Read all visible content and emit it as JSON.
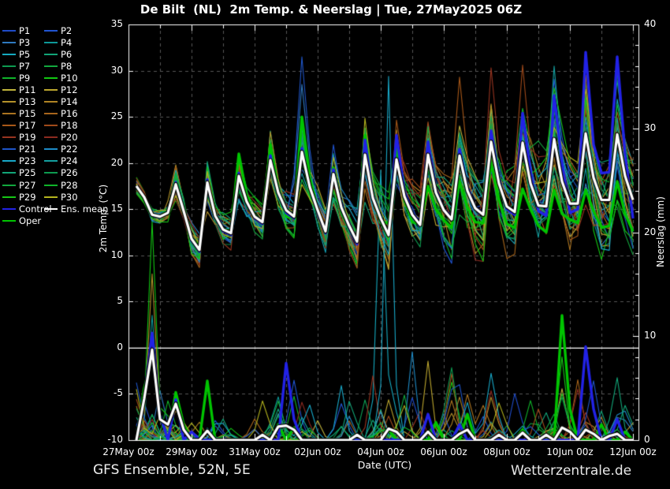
{
  "header": {
    "title": "De Bilt  (NL)  2m Temp. & Neerslag | Tue, 27May2025 06Z"
  },
  "footer": {
    "model_label": "GFS Ensemble, 52N, 5E",
    "site_label": "Wetterzentrale.de"
  },
  "legend": {
    "entries": [
      {
        "label": "P1",
        "color": "#1f4bc8"
      },
      {
        "label": "P2",
        "color": "#2155d2"
      },
      {
        "label": "P3",
        "color": "#2f7ac0"
      },
      {
        "label": "P4",
        "color": "#0e9898"
      },
      {
        "label": "P5",
        "color": "#15aac0"
      },
      {
        "label": "P6",
        "color": "#12a578"
      },
      {
        "label": "P7",
        "color": "#0d9a50"
      },
      {
        "label": "P8",
        "color": "#12a83e"
      },
      {
        "label": "P9",
        "color": "#0fb42a"
      },
      {
        "label": "P10",
        "color": "#12c812"
      },
      {
        "label": "P11",
        "color": "#c0b43c"
      },
      {
        "label": "P12",
        "color": "#bca62e"
      },
      {
        "label": "P13",
        "color": "#b4922a"
      },
      {
        "label": "P14",
        "color": "#b08424"
      },
      {
        "label": "P15",
        "color": "#ac7420"
      },
      {
        "label": "P16",
        "color": "#a8661c"
      },
      {
        "label": "P17",
        "color": "#a85818"
      },
      {
        "label": "P18",
        "color": "#a04a1a"
      },
      {
        "label": "P19",
        "color": "#983420"
      },
      {
        "label": "P20",
        "color": "#8c2a20"
      },
      {
        "label": "P21",
        "color": "#1f55c8"
      },
      {
        "label": "P22",
        "color": "#1e8cc8"
      },
      {
        "label": "P23",
        "color": "#18a8c8"
      },
      {
        "label": "P24",
        "color": "#14a0a0"
      },
      {
        "label": "P25",
        "color": "#12a578"
      },
      {
        "label": "P26",
        "color": "#0d9a50"
      },
      {
        "label": "P27",
        "color": "#12a83e"
      },
      {
        "label": "P28",
        "color": "#0fb42a"
      },
      {
        "label": "P29",
        "color": "#16c616"
      },
      {
        "label": "P30",
        "color": "#b4b41e"
      },
      {
        "label": "Control",
        "color": "#2222e6"
      },
      {
        "label": "Ens. mean",
        "color": "#ffffff"
      },
      {
        "label": "Oper",
        "color": "#00c400"
      }
    ]
  },
  "chart_data": {
    "type": "line",
    "title": "De Bilt  (NL)  2m Temp. & Neerslag | Tue, 27May2025 06Z",
    "xlabel": "Date (UTC)",
    "ylabel_left": "2m Temp. (°C)",
    "ylabel_right": "Neerslag (mm)",
    "y_left": {
      "min": -10,
      "max": 35,
      "ticks": [
        35,
        30,
        25,
        20,
        15,
        10,
        5,
        0,
        -5,
        -10
      ],
      "zero_line": 0
    },
    "y_right": {
      "min": 0,
      "max": 40,
      "ticks": [
        40,
        30,
        20,
        10,
        0
      ],
      "minor_step": 2
    },
    "x_ticks": [
      {
        "label": "27May 00z",
        "day": 0
      },
      {
        "label": "29May 00z",
        "day": 2
      },
      {
        "label": "31May 00z",
        "day": 4
      },
      {
        "label": "02Jun 00z",
        "day": 6
      },
      {
        "label": "04Jun 00z",
        "day": 8
      },
      {
        "label": "06Jun 00z",
        "day": 10
      },
      {
        "label": "08Jun 00z",
        "day": 12
      },
      {
        "label": "10Jun 00z",
        "day": 14
      },
      {
        "label": "12Jun 00z",
        "day": 16
      }
    ],
    "grid": {
      "v_step_hours": 24,
      "h_step_degC": 5,
      "color": "#575757"
    },
    "time": {
      "start_hours": 6,
      "step_hours": 6,
      "count": 64
    },
    "series": {
      "ens_mean": {
        "name": "Ens. mean",
        "color": "#ffffff",
        "temp": [
          17.5,
          16.3,
          14.4,
          14.2,
          14.6,
          17.7,
          14.8,
          11.8,
          10.6,
          17.9,
          14.3,
          12.8,
          12.4,
          18.6,
          15.8,
          14.2,
          13.6,
          20.3,
          16.8,
          14.9,
          14.2,
          21.2,
          17.4,
          14.9,
          12.6,
          18.8,
          15.2,
          13.2,
          11.5,
          20.9,
          16.2,
          14.0,
          12.2,
          20.4,
          16.4,
          14.4,
          13.3,
          20.9,
          16.8,
          14.9,
          13.9,
          20.8,
          17.0,
          15.1,
          14.4,
          22.3,
          17.8,
          15.3,
          14.7,
          22.2,
          17.8,
          15.4,
          15.3,
          22.6,
          18.0,
          15.6,
          15.6,
          23.2,
          18.4,
          16.0,
          16.0,
          23.1,
          18.6,
          16.0
        ],
        "precip_points": [
          [
            12,
            4
          ],
          [
            18,
            8.7
          ],
          [
            24,
            2
          ],
          [
            30,
            1.5
          ],
          [
            36,
            3.5
          ],
          [
            42,
            1
          ],
          [
            60,
            0.9
          ],
          [
            102,
            0.5
          ],
          [
            114,
            1.3
          ],
          [
            120,
            1.4
          ],
          [
            126,
            1
          ],
          [
            174,
            0.5
          ],
          [
            198,
            1.1
          ],
          [
            204,
            0.8
          ],
          [
            228,
            0.8
          ],
          [
            252,
            0.6
          ],
          [
            258,
            1
          ],
          [
            282,
            0.5
          ],
          [
            300,
            0.7
          ],
          [
            318,
            0.5
          ],
          [
            330,
            1.2
          ],
          [
            336,
            0.8
          ],
          [
            348,
            1
          ],
          [
            354,
            0.6
          ],
          [
            366,
            0.4
          ],
          [
            372,
            0.6
          ]
        ]
      },
      "control": {
        "name": "Control",
        "color": "#2222e6",
        "temp": [
          17.5,
          16.2,
          14.3,
          14.1,
          14.7,
          17.9,
          14.7,
          11.6,
          10.4,
          18.2,
          14.1,
          12.6,
          12.2,
          18.9,
          15.6,
          14.0,
          13.4,
          20.8,
          16.6,
          14.6,
          14.0,
          21.6,
          17.2,
          14.6,
          12.4,
          19.3,
          15.0,
          12.9,
          11.2,
          22.5,
          16.6,
          13.8,
          12.4,
          23.0,
          17.0,
          14.6,
          13.6,
          22.3,
          17.2,
          15.0,
          14.2,
          21.5,
          17.4,
          15.2,
          14.6,
          23.5,
          18.4,
          15.0,
          14.4,
          25.4,
          19.0,
          14.8,
          14.3,
          27.3,
          20.0,
          14.6,
          15.0,
          32.0,
          22.0,
          18.9,
          19.0,
          31.5,
          21.0,
          14.0
        ],
        "precip_points": [
          [
            12,
            4
          ],
          [
            18,
            10.3
          ],
          [
            24,
            2.5
          ],
          [
            36,
            3.9
          ],
          [
            48,
            0.8
          ],
          [
            120,
            7.4
          ],
          [
            126,
            2
          ],
          [
            228,
            2.5
          ],
          [
            252,
            1.5
          ],
          [
            348,
            9
          ],
          [
            354,
            3
          ],
          [
            372,
            2
          ]
        ]
      },
      "oper": {
        "name": "Oper",
        "color": "#00c400",
        "temp": [
          17.4,
          16.0,
          14.2,
          14.3,
          14.8,
          17.5,
          14.6,
          11.9,
          11.0,
          18.1,
          14.4,
          12.9,
          12.6,
          21.0,
          16.5,
          14.4,
          13.5,
          22.0,
          17.2,
          14.2,
          14.0,
          25.0,
          18.5,
          15.0,
          12.5,
          19.5,
          14.8,
          12.8,
          12.0,
          23.0,
          16.0,
          13.6,
          13.5,
          21.5,
          16.0,
          13.6,
          13.4,
          17.5,
          15.0,
          13.8,
          13.0,
          18.0,
          15.2,
          13.6,
          13.5,
          20.0,
          16.0,
          13.4,
          13.0,
          17.2,
          15.0,
          13.2,
          12.5,
          17.1,
          14.5,
          13.9,
          13.5,
          17.1,
          14.8,
          13.0,
          13.2,
          18.0,
          14.5,
          12.6
        ],
        "precip_points": [
          [
            12,
            5
          ],
          [
            18,
            8
          ],
          [
            24,
            2.5
          ],
          [
            36,
            4.6
          ],
          [
            42,
            1.5
          ],
          [
            60,
            5.7
          ],
          [
            114,
            1.5
          ],
          [
            126,
            1.2
          ],
          [
            198,
            1
          ],
          [
            234,
            1.7
          ],
          [
            258,
            2.5
          ],
          [
            300,
            1
          ],
          [
            330,
            12
          ],
          [
            336,
            3
          ],
          [
            360,
            1.5
          ],
          [
            378,
            0.8
          ]
        ]
      }
    },
    "members": {
      "count": 30,
      "spread_start_degC": 0.5,
      "spread_end_degC": 6.0,
      "temp_spikes": [
        {
          "member": 20,
          "t": 132,
          "v": 31.5
        },
        {
          "member": 2,
          "t": 132,
          "v": 28.5
        },
        {
          "member": 12,
          "t": 36,
          "v": 19.8
        },
        {
          "member": 18,
          "t": 276,
          "v": 30.3
        },
        {
          "member": 17,
          "t": 300,
          "v": 30.6
        },
        {
          "member": 16,
          "t": 252,
          "v": 29.3
        },
        {
          "member": 23,
          "t": 324,
          "v": 30.5
        },
        {
          "member": 5,
          "t": 372,
          "v": 30.0
        },
        {
          "member": 14,
          "t": 348,
          "v": 29.5
        }
      ],
      "precip_events": [
        {
          "t0": 6,
          "t1": 30,
          "frac": 0.97,
          "max": 7
        },
        {
          "t0": 30,
          "t1": 48,
          "frac": 0.55,
          "max": 4
        },
        {
          "t0": 54,
          "t1": 78,
          "frac": 0.35,
          "max": 3.5
        },
        {
          "t0": 96,
          "t1": 144,
          "frac": 0.6,
          "max": 6.5
        },
        {
          "t0": 162,
          "t1": 210,
          "frac": 0.6,
          "max": 8
        },
        {
          "t0": 216,
          "t1": 264,
          "frac": 0.55,
          "max": 8
        },
        {
          "t0": 270,
          "t1": 330,
          "frac": 0.65,
          "max": 7
        },
        {
          "t0": 330,
          "t1": 384,
          "frac": 0.7,
          "max": 7
        }
      ],
      "precip_spikes": [
        {
          "member": 9,
          "t": 18,
          "mm": 21
        },
        {
          "member": 12,
          "t": 18,
          "mm": 16
        },
        {
          "member": 3,
          "t": 18,
          "mm": 12
        },
        {
          "member": 22,
          "t": 198,
          "mm": 35
        },
        {
          "member": 4,
          "t": 192,
          "mm": 26
        },
        {
          "member": 21,
          "t": 216,
          "mm": 8.5
        },
        {
          "member": 11,
          "t": 228,
          "mm": 7.6
        },
        {
          "member": 28,
          "t": 330,
          "mm": 8
        }
      ]
    }
  }
}
